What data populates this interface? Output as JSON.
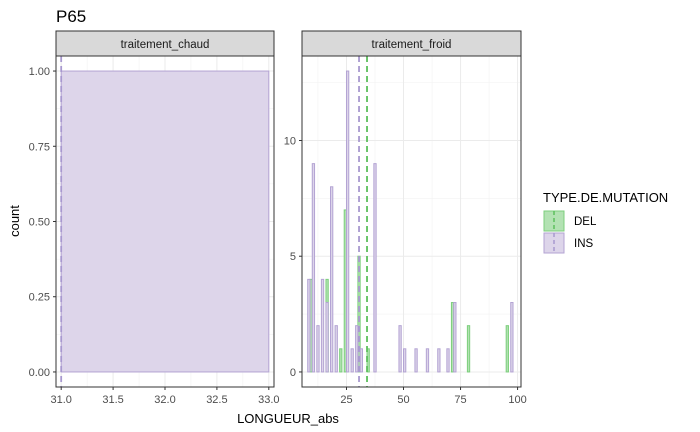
{
  "chart_data": {
    "type": "bar",
    "title": "P65",
    "xlabel": "LONGUEUR_abs",
    "ylabel": "count",
    "legend": {
      "title": "TYPE.DE.MUTATION",
      "position": "right",
      "items": [
        {
          "label": "DEL",
          "color": "#8fd18f"
        },
        {
          "label": "INS",
          "color": "#cfc5e4"
        }
      ]
    },
    "colors": {
      "DEL_fill": "#b3e2b3",
      "DEL_stroke": "#7ccf7c",
      "INS_fill": "#ddd5ea",
      "INS_stroke": "#b3a3d3",
      "DEL_mean_line": "#5cbf5c",
      "INS_mean_line": "#a899cf"
    },
    "grid": true,
    "facets": [
      {
        "label": "traitement_chaud",
        "xlim": [
          30.95,
          33.05
        ],
        "ylim": [
          -0.05,
          1.05
        ],
        "xticks": [
          "31.0",
          "31.5",
          "32.0",
          "32.5",
          "33.0"
        ],
        "xtick_values": [
          31.0,
          31.5,
          32.0,
          32.5,
          33.0
        ],
        "yticks": [
          "0.00",
          "0.25",
          "0.50",
          "0.75",
          "1.00"
        ],
        "ytick_values": [
          0.0,
          0.25,
          0.5,
          0.75,
          1.0
        ],
        "series": [
          {
            "name": "INS",
            "bars": [
              {
                "x0": 31.0,
                "x1": 33.0,
                "count": 1
              }
            ]
          }
        ],
        "means": [
          {
            "series": "INS",
            "x": 31.0
          }
        ]
      },
      {
        "label": "traitement_froid",
        "xlim": [
          5.5,
          101.5
        ],
        "ylim": [
          -0.65,
          13.65
        ],
        "xticks": [
          "25",
          "50",
          "75",
          "100"
        ],
        "xtick_values": [
          25,
          50,
          75,
          100
        ],
        "yticks": [
          "0",
          "5",
          "10"
        ],
        "ytick_values": [
          0,
          5,
          10
        ],
        "series": [
          {
            "name": "DEL",
            "bars": [
              {
                "x": 9.5,
                "count": 4
              },
              {
                "x": 16.5,
                "count": 4
              },
              {
                "x": 22.5,
                "count": 1
              },
              {
                "x": 24.5,
                "count": 7
              },
              {
                "x": 30.5,
                "count": 5
              },
              {
                "x": 34.5,
                "count": 1
              },
              {
                "x": 71.5,
                "count": 3
              },
              {
                "x": 78.5,
                "count": 2
              },
              {
                "x": 95.5,
                "count": 2
              }
            ]
          },
          {
            "name": "INS",
            "bars": [
              {
                "x": 8.5,
                "count": 4
              },
              {
                "x": 10.5,
                "count": 9
              },
              {
                "x": 12.5,
                "count": 2
              },
              {
                "x": 14.5,
                "count": 4
              },
              {
                "x": 16.5,
                "count": 3
              },
              {
                "x": 18.5,
                "count": 8
              },
              {
                "x": 20.5,
                "count": 2
              },
              {
                "x": 25.5,
                "count": 13
              },
              {
                "x": 27.5,
                "count": 1
              },
              {
                "x": 29.5,
                "count": 2
              },
              {
                "x": 31.5,
                "count": 1
              },
              {
                "x": 37.5,
                "count": 9
              },
              {
                "x": 48.5,
                "count": 2
              },
              {
                "x": 50.5,
                "count": 1
              },
              {
                "x": 55.5,
                "count": 1
              },
              {
                "x": 60.5,
                "count": 1
              },
              {
                "x": 65.5,
                "count": 1
              },
              {
                "x": 69.5,
                "count": 1
              },
              {
                "x": 72.5,
                "count": 3
              },
              {
                "x": 97.5,
                "count": 3
              }
            ]
          }
        ],
        "means": [
          {
            "series": "INS",
            "x": 30.5
          },
          {
            "series": "DEL",
            "x": 34.0
          }
        ]
      }
    ]
  }
}
